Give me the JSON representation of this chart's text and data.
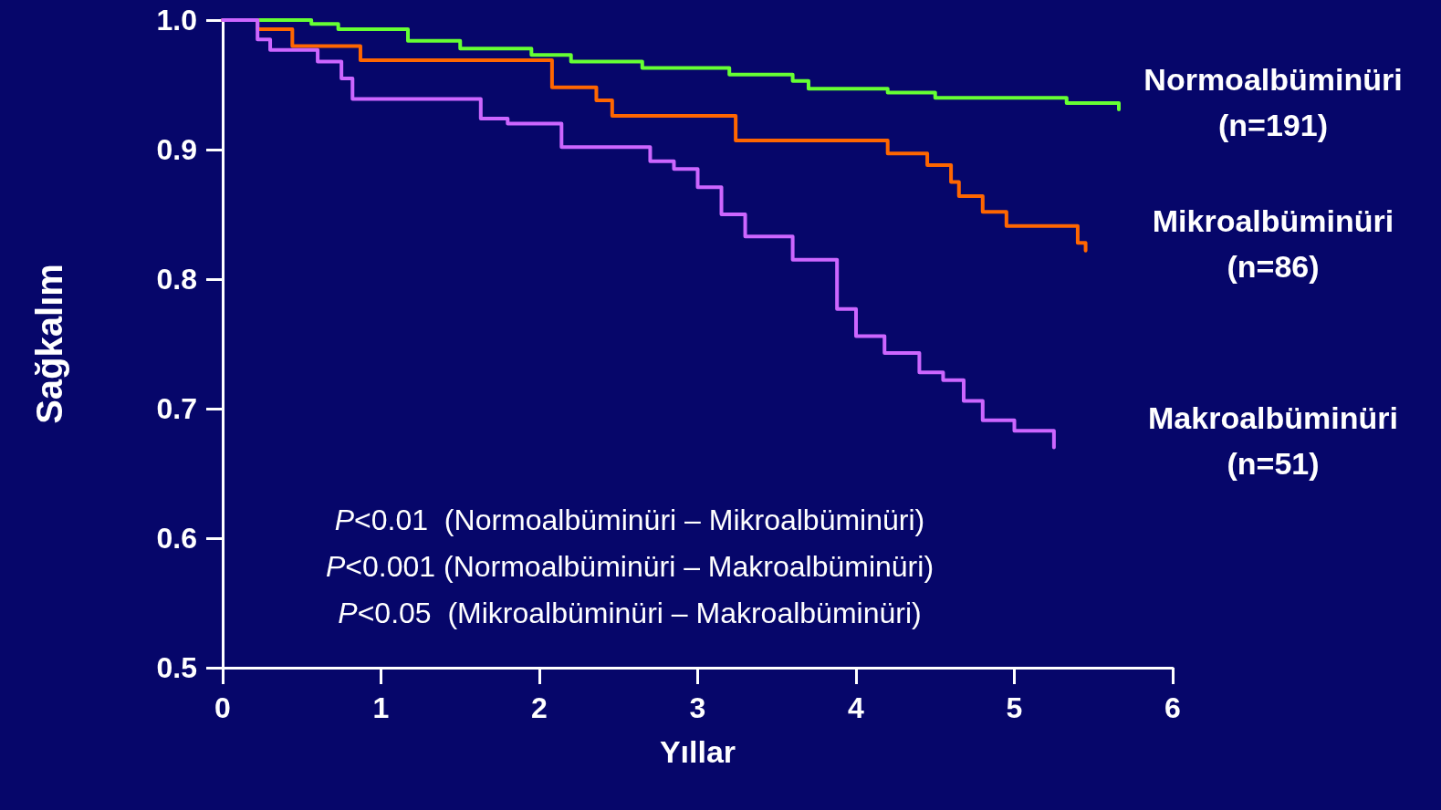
{
  "chart_data": {
    "type": "step",
    "xlabel": "Yıllar",
    "ylabel": "Sağkalım",
    "xlim": [
      0,
      6
    ],
    "xticks": [
      0,
      1,
      2,
      3,
      4,
      5,
      6
    ],
    "ylim": [
      0.5,
      1.0
    ],
    "yticks": [
      0.5,
      0.6,
      0.7,
      0.8,
      0.9,
      {
        "value": 1.0,
        "label": "1.0"
      }
    ],
    "grid": false,
    "legend": false,
    "marker": "none",
    "line_style": "solid",
    "series": [
      {
        "name": "Normoalbüminüri (n=191)",
        "color": "#66ff33",
        "x": [
          0,
          0.56,
          0.73,
          1.17,
          1.5,
          1.95,
          2.2,
          2.65,
          3.2,
          3.6,
          3.7,
          4.2,
          4.5,
          5.33,
          5.66
        ],
        "values": [
          1.0,
          0.997,
          0.993,
          0.984,
          0.978,
          0.973,
          0.968,
          0.963,
          0.958,
          0.953,
          0.947,
          0.944,
          0.94,
          0.936,
          0.931
        ]
      },
      {
        "name": "Mikroalbüminüri (n=86)",
        "color": "#ff6600",
        "x": [
          0,
          0.22,
          0.44,
          0.87,
          2.08,
          2.36,
          2.46,
          3.24,
          4.2,
          4.45,
          4.6,
          4.65,
          4.8,
          4.95,
          5.4,
          5.45
        ],
        "values": [
          1.0,
          0.993,
          0.98,
          0.969,
          0.948,
          0.938,
          0.926,
          0.907,
          0.897,
          0.888,
          0.875,
          0.864,
          0.852,
          0.841,
          0.828,
          0.822
        ]
      },
      {
        "name": "Makroalbüminüri (n=51)",
        "color": "#cc66ff",
        "x": [
          0,
          0.22,
          0.3,
          0.6,
          0.75,
          0.82,
          1.63,
          1.8,
          2.14,
          2.7,
          2.85,
          3.0,
          3.15,
          3.3,
          3.6,
          3.88,
          4.0,
          4.18,
          4.4,
          4.55,
          4.68,
          4.8,
          5.0,
          5.25
        ],
        "values": [
          1.0,
          0.985,
          0.977,
          0.968,
          0.955,
          0.939,
          0.924,
          0.92,
          0.902,
          0.891,
          0.885,
          0.871,
          0.85,
          0.833,
          0.815,
          0.777,
          0.756,
          0.743,
          0.728,
          0.722,
          0.706,
          0.691,
          0.683,
          0.67
        ]
      }
    ],
    "annotations": [
      "P<0.01  (Normoalbüminüri – Mikroalbüminüri)",
      "P<0.001 (Normoalbüminüri – Makroalbüminüri)",
      "P<0.05  (Mikroalbüminüri – Makroalbüminüri)"
    ]
  }
}
